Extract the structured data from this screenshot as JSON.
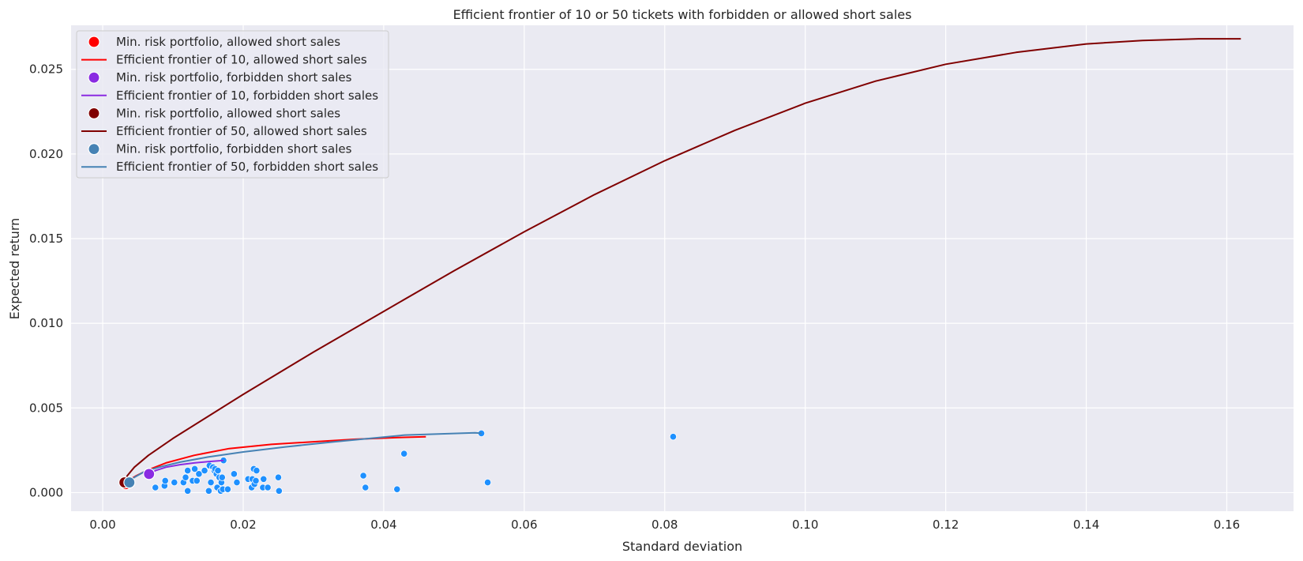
{
  "chart_data": {
    "type": "scatter",
    "title": "Efficient frontier of 10 or 50 tickets with forbidden or allowed short sales",
    "xlabel": "Standard deviation",
    "ylabel": "Expected return",
    "xlim": [
      -0.0045,
      0.1695
    ],
    "ylim": [
      -0.0011,
      0.0276
    ],
    "xticks": [
      0.0,
      0.02,
      0.04,
      0.06,
      0.08,
      0.1,
      0.12,
      0.14,
      0.16
    ],
    "xtick_labels": [
      "0.00",
      "0.02",
      "0.04",
      "0.06",
      "0.08",
      "0.10",
      "0.12",
      "0.14",
      "0.16"
    ],
    "yticks": [
      0.0,
      0.005,
      0.01,
      0.015,
      0.02,
      0.025
    ],
    "ytick_labels": [
      "0.000",
      "0.005",
      "0.010",
      "0.015",
      "0.020",
      "0.025"
    ],
    "grid": true,
    "legend_position": "top-left",
    "colors": {
      "background": "#eaeaf2",
      "grid": "#ffffff",
      "assets": "#1e90ff",
      "allowed_10": "#ff0000",
      "forbidden_10": "#8a2be2",
      "allowed_50": "#800000",
      "forbidden_50": "#4682b4"
    },
    "assets": {
      "x": [
        0.0075,
        0.0088,
        0.0089,
        0.0102,
        0.0115,
        0.0118,
        0.0121,
        0.0121,
        0.0128,
        0.0131,
        0.0134,
        0.0137,
        0.0145,
        0.0151,
        0.0152,
        0.0154,
        0.0157,
        0.0159,
        0.016,
        0.0162,
        0.0163,
        0.0164,
        0.0166,
        0.0168,
        0.0169,
        0.017,
        0.0171,
        0.0172,
        0.0178,
        0.0187,
        0.0191,
        0.0207,
        0.0212,
        0.0213,
        0.0215,
        0.0216,
        0.0218,
        0.0219,
        0.0228,
        0.0229,
        0.0235,
        0.025,
        0.0251,
        0.0371,
        0.0374,
        0.0419,
        0.0429,
        0.0539,
        0.0548,
        0.0812
      ],
      "y": [
        0.0003,
        0.0004,
        0.0007,
        0.0006,
        0.0006,
        0.0009,
        0.0001,
        0.0013,
        0.0007,
        0.0014,
        0.0007,
        0.0011,
        0.0013,
        0.0001,
        0.0016,
        0.0006,
        0.0015,
        0.0013,
        0.0014,
        0.0011,
        0.0003,
        0.0013,
        0.0009,
        0.0001,
        0.0006,
        0.0009,
        0.0002,
        0.0019,
        0.0002,
        0.0011,
        0.0006,
        0.0008,
        0.0003,
        0.0008,
        0.0014,
        0.0005,
        0.0007,
        0.0013,
        0.0003,
        0.0008,
        0.0003,
        0.0009,
        0.0001,
        0.001,
        0.0003,
        0.0002,
        0.0023,
        0.0035,
        0.0006,
        0.0033
      ]
    },
    "series": [
      {
        "name": "Min. risk portfolio, allowed short sales",
        "kind": "point",
        "color": "#ff0000",
        "x": [
          0.0033
        ],
        "y": [
          0.0005
        ]
      },
      {
        "name": "Efficient frontier of 10, allowed short sales",
        "kind": "line",
        "color": "#ff0000",
        "x": [
          0.0034,
          0.0038,
          0.0048,
          0.0065,
          0.009,
          0.013,
          0.018,
          0.024,
          0.03,
          0.036,
          0.042,
          0.046
        ],
        "y": [
          0.0005,
          0.00075,
          0.001,
          0.00135,
          0.00175,
          0.0022,
          0.0026,
          0.00285,
          0.003,
          0.00315,
          0.00325,
          0.0033
        ]
      },
      {
        "name": "Min. risk portfolio, forbidden short sales",
        "kind": "point",
        "color": "#8a2be2",
        "x": [
          0.0066
        ],
        "y": [
          0.0011
        ]
      },
      {
        "name": "Efficient frontier of 10, forbidden short sales",
        "kind": "line",
        "color": "#8a2be2",
        "x": [
          0.0066,
          0.0075,
          0.009,
          0.011,
          0.013,
          0.015,
          0.0172
        ],
        "y": [
          0.0011,
          0.0013,
          0.0015,
          0.00165,
          0.00175,
          0.00183,
          0.0019
        ]
      },
      {
        "name": "Min. risk portfolio, allowed short sales",
        "kind": "point",
        "color": "#800000",
        "x": [
          0.0031
        ],
        "y": [
          0.0006
        ]
      },
      {
        "name": "Efficient frontier of 50, allowed short sales",
        "kind": "line",
        "color": "#800000",
        "x": [
          0.0031,
          0.0035,
          0.0045,
          0.0065,
          0.01,
          0.015,
          0.02,
          0.03,
          0.04,
          0.05,
          0.06,
          0.07,
          0.08,
          0.09,
          0.1,
          0.11,
          0.12,
          0.13,
          0.14,
          0.148,
          0.156,
          0.162
        ],
        "y": [
          0.0006,
          0.001,
          0.0015,
          0.0022,
          0.0032,
          0.0045,
          0.0058,
          0.0083,
          0.0107,
          0.0131,
          0.0154,
          0.0176,
          0.0196,
          0.0214,
          0.023,
          0.0243,
          0.0253,
          0.026,
          0.0265,
          0.0267,
          0.0268,
          0.0268
        ]
      },
      {
        "name": "Min. risk portfolio, forbidden short sales",
        "kind": "point",
        "color": "#4682b4",
        "x": [
          0.0038
        ],
        "y": [
          0.0006
        ]
      },
      {
        "name": "Efficient frontier of 50, forbidden short sales",
        "kind": "line",
        "color": "#4682b4",
        "x": [
          0.0038,
          0.0045,
          0.006,
          0.008,
          0.011,
          0.015,
          0.02,
          0.026,
          0.033,
          0.043,
          0.053,
          0.0539
        ],
        "y": [
          0.0006,
          0.0009,
          0.00125,
          0.0015,
          0.0018,
          0.0021,
          0.0024,
          0.0027,
          0.003,
          0.0034,
          0.00353,
          0.0035
        ]
      }
    ]
  }
}
